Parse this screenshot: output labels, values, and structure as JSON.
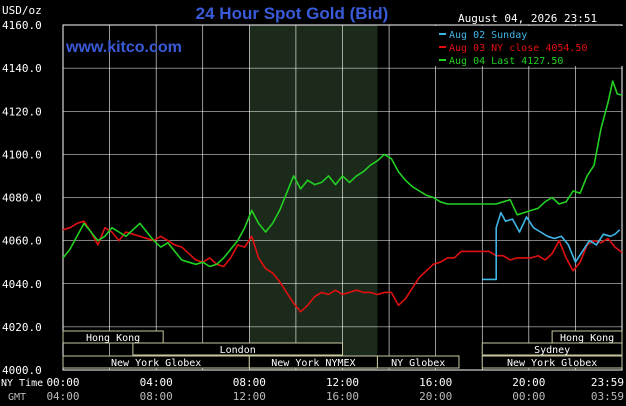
{
  "header": {
    "unit": "USD/oz",
    "title": "24 Hour Spot Gold (Bid)",
    "timestamp": "August 04, 2026 23:51",
    "site": "www.kitco.com"
  },
  "colors": {
    "background": "#000000",
    "grid": "#ffffff",
    "night_band": "#1c2a1c",
    "sunday": "#3fb6e6",
    "nyclose": "#e01010",
    "last": "#22d022",
    "session_bar": "#000000",
    "session_border": "#c8c8a0"
  },
  "chart_data": {
    "type": "line",
    "title": "24 Hour Spot Gold (Bid)",
    "ylabel": "USD/oz",
    "ylim": [
      4000,
      4160
    ],
    "yticks": [
      "4160.0",
      "4140.0",
      "4120.0",
      "4100.0",
      "4080.0",
      "4060.0",
      "4040.0",
      "4020.0",
      "4000.0"
    ],
    "xlim": [
      0,
      24
    ],
    "x_row_ny_label": "NY Time",
    "x_row_gmt_label": "GMT",
    "x_ticks_ny": [
      "00:00",
      "04:00",
      "08:00",
      "12:00",
      "16:00",
      "20:00",
      "23:59"
    ],
    "x_ticks_gmt": [
      "04:00",
      "08:00",
      "12:00",
      "16:00",
      "20:00",
      "00:00",
      "03:59"
    ],
    "grid": true,
    "legend_position": "top-right",
    "series": [
      {
        "name": "Aug 02 Sunday",
        "color": "#3fb6e6",
        "points": [
          [
            18.0,
            4042
          ],
          [
            18.6,
            4042
          ],
          [
            18.6,
            4066
          ],
          [
            18.8,
            4073
          ],
          [
            19.0,
            4069
          ],
          [
            19.3,
            4070
          ],
          [
            19.6,
            4064
          ],
          [
            19.9,
            4071
          ],
          [
            20.2,
            4066
          ],
          [
            20.5,
            4064
          ],
          [
            20.8,
            4062
          ],
          [
            21.1,
            4061
          ],
          [
            21.4,
            4062
          ],
          [
            21.7,
            4058
          ],
          [
            22.0,
            4050
          ],
          [
            22.3,
            4055
          ],
          [
            22.6,
            4060
          ],
          [
            22.9,
            4058
          ],
          [
            23.2,
            4063
          ],
          [
            23.5,
            4062
          ],
          [
            23.7,
            4063
          ],
          [
            23.9,
            4065
          ]
        ]
      },
      {
        "name": "Aug 03 NY close 4054.50",
        "color": "#e01010",
        "points": [
          [
            0.0,
            4065
          ],
          [
            0.3,
            4066
          ],
          [
            0.6,
            4068
          ],
          [
            0.9,
            4069
          ],
          [
            1.2,
            4064
          ],
          [
            1.5,
            4058
          ],
          [
            1.8,
            4066
          ],
          [
            2.1,
            4064
          ],
          [
            2.4,
            4060
          ],
          [
            2.7,
            4064
          ],
          [
            3.0,
            4063
          ],
          [
            3.3,
            4062
          ],
          [
            3.6,
            4061
          ],
          [
            3.9,
            4060
          ],
          [
            4.2,
            4062
          ],
          [
            4.5,
            4060
          ],
          [
            4.8,
            4058
          ],
          [
            5.1,
            4057
          ],
          [
            5.4,
            4054
          ],
          [
            5.7,
            4051
          ],
          [
            6.0,
            4050
          ],
          [
            6.3,
            4052
          ],
          [
            6.6,
            4049
          ],
          [
            6.9,
            4048
          ],
          [
            7.2,
            4052
          ],
          [
            7.5,
            4058
          ],
          [
            7.8,
            4057
          ],
          [
            8.1,
            4062
          ],
          [
            8.4,
            4052
          ],
          [
            8.7,
            4047
          ],
          [
            9.0,
            4045
          ],
          [
            9.3,
            4041
          ],
          [
            9.6,
            4036
          ],
          [
            9.9,
            4031
          ],
          [
            10.2,
            4027
          ],
          [
            10.5,
            4030
          ],
          [
            10.8,
            4034
          ],
          [
            11.1,
            4036
          ],
          [
            11.4,
            4035
          ],
          [
            11.7,
            4037
          ],
          [
            12.0,
            4035
          ],
          [
            12.3,
            4036
          ],
          [
            12.6,
            4037
          ],
          [
            12.9,
            4036
          ],
          [
            13.2,
            4036
          ],
          [
            13.5,
            4035
          ],
          [
            13.8,
            4036
          ],
          [
            14.1,
            4036
          ],
          [
            14.4,
            4030
          ],
          [
            14.7,
            4033
          ],
          [
            15.0,
            4038
          ],
          [
            15.3,
            4043
          ],
          [
            15.6,
            4046
          ],
          [
            15.9,
            4049
          ],
          [
            16.2,
            4050
          ],
          [
            16.5,
            4052
          ],
          [
            16.8,
            4052
          ],
          [
            17.1,
            4055
          ],
          [
            17.4,
            4055
          ],
          [
            17.7,
            4055
          ],
          [
            18.0,
            4055
          ],
          [
            18.3,
            4055
          ],
          [
            18.6,
            4053
          ],
          [
            18.9,
            4053
          ],
          [
            19.2,
            4051
          ],
          [
            19.5,
            4052
          ],
          [
            19.8,
            4052
          ],
          [
            20.1,
            4052
          ],
          [
            20.4,
            4053
          ],
          [
            20.7,
            4051
          ],
          [
            21.0,
            4054
          ],
          [
            21.3,
            4060
          ],
          [
            21.6,
            4052
          ],
          [
            21.9,
            4046
          ],
          [
            22.2,
            4050
          ],
          [
            22.5,
            4058
          ],
          [
            22.8,
            4060
          ],
          [
            23.1,
            4059
          ],
          [
            23.4,
            4061
          ],
          [
            23.7,
            4057
          ],
          [
            24.0,
            4054.5
          ]
        ]
      },
      {
        "name": "Aug 04 Last 4127.50",
        "color": "#22d022",
        "points": [
          [
            0.0,
            4052
          ],
          [
            0.3,
            4056
          ],
          [
            0.6,
            4062
          ],
          [
            0.9,
            4068
          ],
          [
            1.2,
            4064
          ],
          [
            1.5,
            4060
          ],
          [
            1.8,
            4062
          ],
          [
            2.1,
            4066
          ],
          [
            2.4,
            4064
          ],
          [
            2.7,
            4062
          ],
          [
            3.0,
            4065
          ],
          [
            3.3,
            4068
          ],
          [
            3.6,
            4064
          ],
          [
            3.9,
            4060
          ],
          [
            4.2,
            4057
          ],
          [
            4.5,
            4059
          ],
          [
            4.8,
            4055
          ],
          [
            5.1,
            4051
          ],
          [
            5.4,
            4050
          ],
          [
            5.7,
            4049
          ],
          [
            6.0,
            4050
          ],
          [
            6.3,
            4048
          ],
          [
            6.6,
            4049
          ],
          [
            6.9,
            4052
          ],
          [
            7.2,
            4056
          ],
          [
            7.5,
            4060
          ],
          [
            7.8,
            4066
          ],
          [
            8.1,
            4074
          ],
          [
            8.4,
            4068
          ],
          [
            8.7,
            4064
          ],
          [
            9.0,
            4068
          ],
          [
            9.3,
            4074
          ],
          [
            9.6,
            4082
          ],
          [
            9.9,
            4090
          ],
          [
            10.2,
            4084
          ],
          [
            10.5,
            4088
          ],
          [
            10.8,
            4086
          ],
          [
            11.1,
            4087
          ],
          [
            11.4,
            4090
          ],
          [
            11.7,
            4086
          ],
          [
            12.0,
            4090
          ],
          [
            12.3,
            4087
          ],
          [
            12.6,
            4090
          ],
          [
            12.9,
            4092
          ],
          [
            13.2,
            4095
          ],
          [
            13.5,
            4097
          ],
          [
            13.8,
            4100
          ],
          [
            14.1,
            4098
          ],
          [
            14.4,
            4092
          ],
          [
            14.7,
            4088
          ],
          [
            15.0,
            4085
          ],
          [
            15.3,
            4083
          ],
          [
            15.6,
            4081
          ],
          [
            15.9,
            4080
          ],
          [
            16.2,
            4078
          ],
          [
            16.5,
            4077
          ],
          [
            16.8,
            4077
          ],
          [
            17.1,
            4077
          ],
          [
            17.4,
            4077
          ],
          [
            17.7,
            4077
          ],
          [
            18.0,
            4077
          ],
          [
            18.3,
            4077
          ],
          [
            18.6,
            4077
          ],
          [
            18.9,
            4078
          ],
          [
            19.2,
            4079
          ],
          [
            19.5,
            4072
          ],
          [
            19.8,
            4073
          ],
          [
            20.1,
            4074
          ],
          [
            20.4,
            4075
          ],
          [
            20.7,
            4078
          ],
          [
            21.0,
            4080
          ],
          [
            21.3,
            4077
          ],
          [
            21.6,
            4078
          ],
          [
            21.9,
            4083
          ],
          [
            22.2,
            4082
          ],
          [
            22.5,
            4090
          ],
          [
            22.8,
            4095
          ],
          [
            23.1,
            4112
          ],
          [
            23.4,
            4124
          ],
          [
            23.6,
            4134
          ],
          [
            23.8,
            4128
          ],
          [
            24.0,
            4127.5
          ]
        ]
      }
    ],
    "sessions": [
      {
        "label": "Hong Kong",
        "start": 0.0,
        "end": 4.3,
        "row": 1
      },
      {
        "label": "London",
        "start": 3.0,
        "end": 12.0,
        "row": 2
      },
      {
        "label": "New York Globex",
        "start": 0.0,
        "end": 8.0,
        "row": 3
      },
      {
        "label": "New York NYMEX",
        "start": 8.0,
        "end": 13.5,
        "row": 3
      },
      {
        "label": "NY Globex",
        "start": 13.5,
        "end": 17.0,
        "row": 3
      },
      {
        "label": "Hong Kong",
        "start": 21.0,
        "end": 24.0,
        "row": 1
      },
      {
        "label": "Sydney",
        "start": 18.0,
        "end": 24.0,
        "row": 2
      },
      {
        "label": "New York Globex",
        "start": 18.0,
        "end": 24.0,
        "row": 3
      }
    ],
    "night_band": [
      8.0,
      13.5
    ]
  }
}
